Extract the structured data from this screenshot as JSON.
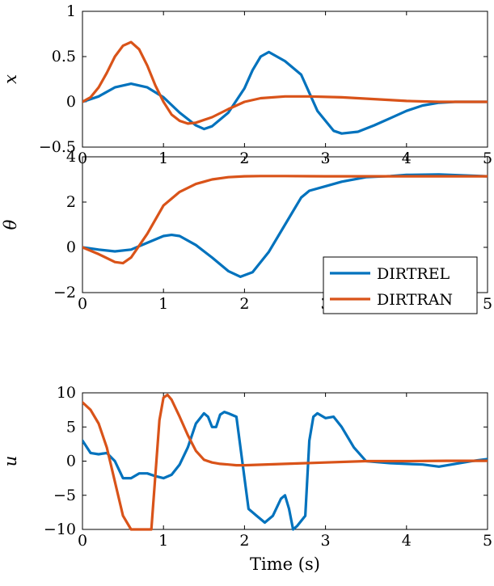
{
  "colors": {
    "DIRTREL": "#0072BD",
    "DIRTRAN": "#D95319"
  },
  "chart_data": [
    {
      "type": "line",
      "ylabel": "x",
      "xlim": [
        0,
        5
      ],
      "ylim": [
        -0.5,
        1
      ],
      "xticks": [
        "0",
        "1",
        "2",
        "3",
        "4",
        "5"
      ],
      "yticks": [
        "−0.5",
        "0",
        "0.5",
        "1"
      ],
      "ytick_values": [
        -0.5,
        0,
        0.5,
        1
      ],
      "series": [
        {
          "name": "DIRTREL",
          "x": [
            0,
            0.2,
            0.4,
            0.6,
            0.8,
            1.0,
            1.2,
            1.4,
            1.5,
            1.6,
            1.8,
            2.0,
            2.1,
            2.2,
            2.3,
            2.5,
            2.7,
            2.9,
            3.1,
            3.2,
            3.4,
            3.6,
            3.8,
            4.0,
            4.2,
            4.4,
            4.6,
            4.8,
            5.0
          ],
          "y": [
            0,
            0.06,
            0.16,
            0.2,
            0.16,
            0.05,
            -0.12,
            -0.26,
            -0.3,
            -0.27,
            -0.12,
            0.15,
            0.35,
            0.5,
            0.55,
            0.45,
            0.3,
            -0.1,
            -0.32,
            -0.35,
            -0.33,
            -0.26,
            -0.18,
            -0.1,
            -0.04,
            -0.01,
            0,
            0,
            0
          ]
        },
        {
          "name": "DIRTRAN",
          "x": [
            0,
            0.1,
            0.2,
            0.3,
            0.4,
            0.5,
            0.6,
            0.7,
            0.8,
            0.9,
            1.0,
            1.1,
            1.2,
            1.3,
            1.4,
            1.6,
            1.8,
            2.0,
            2.2,
            2.5,
            2.8,
            3.2,
            3.6,
            4.0,
            4.4,
            4.8,
            5.0
          ],
          "y": [
            0,
            0.05,
            0.16,
            0.32,
            0.5,
            0.62,
            0.66,
            0.58,
            0.4,
            0.18,
            0.0,
            -0.14,
            -0.21,
            -0.24,
            -0.23,
            -0.17,
            -0.08,
            0.0,
            0.04,
            0.06,
            0.06,
            0.05,
            0.03,
            0.01,
            0.0,
            0,
            0
          ]
        }
      ]
    },
    {
      "type": "line",
      "ylabel": "θ",
      "xlim": [
        0,
        5
      ],
      "ylim": [
        -2,
        4
      ],
      "xticks": [
        "0",
        "1",
        "2",
        "3",
        "4",
        "5"
      ],
      "yticks": [
        "−2",
        "0",
        "2",
        "4"
      ],
      "ytick_values": [
        -2,
        0,
        2,
        4
      ],
      "legend": {
        "position": "right",
        "entries": [
          "DIRTREL",
          "DIRTRAN"
        ]
      },
      "series": [
        {
          "name": "DIRTREL",
          "x": [
            0,
            0.2,
            0.4,
            0.6,
            0.8,
            1.0,
            1.1,
            1.2,
            1.4,
            1.6,
            1.8,
            1.95,
            2.1,
            2.3,
            2.5,
            2.7,
            2.8,
            3.0,
            3.2,
            3.5,
            3.8,
            4.0,
            4.4,
            4.7,
            5.0
          ],
          "y": [
            0,
            -0.1,
            -0.18,
            -0.1,
            0.2,
            0.5,
            0.55,
            0.5,
            0.1,
            -0.45,
            -1.05,
            -1.3,
            -1.1,
            -0.2,
            1.0,
            2.2,
            2.5,
            2.7,
            2.9,
            3.1,
            3.15,
            3.2,
            3.22,
            3.18,
            3.14
          ]
        },
        {
          "name": "DIRTRAN",
          "x": [
            0,
            0.2,
            0.4,
            0.5,
            0.6,
            0.8,
            1.0,
            1.2,
            1.4,
            1.6,
            1.8,
            2.0,
            2.2,
            2.5,
            3.0,
            3.5,
            4.0,
            4.5,
            5.0
          ],
          "y": [
            0,
            -0.3,
            -0.65,
            -0.7,
            -0.45,
            0.6,
            1.85,
            2.45,
            2.8,
            3.0,
            3.1,
            3.14,
            3.15,
            3.15,
            3.14,
            3.14,
            3.14,
            3.14,
            3.14
          ]
        }
      ]
    },
    {
      "type": "line",
      "ylabel": "u",
      "xlabel": "Time (s)",
      "xlim": [
        0,
        5
      ],
      "ylim": [
        -10,
        10
      ],
      "xticks": [
        "0",
        "1",
        "2",
        "3",
        "4",
        "5"
      ],
      "yticks": [
        "−10",
        "−5",
        "0",
        "5",
        "10"
      ],
      "ytick_values": [
        -10,
        -5,
        0,
        5,
        10
      ],
      "series": [
        {
          "name": "DIRTREL",
          "x": [
            0,
            0.1,
            0.2,
            0.3,
            0.4,
            0.5,
            0.6,
            0.7,
            0.8,
            0.9,
            1.0,
            1.1,
            1.2,
            1.3,
            1.4,
            1.5,
            1.55,
            1.6,
            1.65,
            1.7,
            1.75,
            1.8,
            1.9,
            1.95,
            2.05,
            2.15,
            2.25,
            2.35,
            2.45,
            2.5,
            2.55,
            2.6,
            2.65,
            2.75,
            2.8,
            2.85,
            2.9,
            3.0,
            3.1,
            3.2,
            3.35,
            3.5,
            3.8,
            4.0,
            4.2,
            4.4,
            4.6,
            4.8,
            5.0
          ],
          "y": [
            3,
            1.2,
            1.0,
            1.2,
            0,
            -2.5,
            -2.5,
            -1.8,
            -1.8,
            -2.2,
            -2.5,
            -2.0,
            -0.5,
            2.0,
            5.5,
            7.0,
            6.5,
            5.0,
            5.0,
            6.8,
            7.2,
            7.0,
            6.5,
            2.0,
            -7.0,
            -8.0,
            -9.0,
            -8.0,
            -5.5,
            -5.0,
            -7.0,
            -10.0,
            -9.5,
            -8.0,
            3.0,
            6.5,
            7.0,
            6.3,
            6.5,
            5.0,
            2.0,
            0.0,
            -0.3,
            -0.4,
            -0.5,
            -0.8,
            -0.4,
            0.0,
            0.3
          ]
        },
        {
          "name": "DIRTRAN",
          "x": [
            0,
            0.1,
            0.2,
            0.3,
            0.4,
            0.5,
            0.6,
            0.7,
            0.8,
            0.85,
            0.9,
            0.95,
            1.0,
            1.05,
            1.1,
            1.2,
            1.3,
            1.4,
            1.5,
            1.6,
            1.7,
            1.8,
            1.9,
            2.0,
            2.5,
            3.0,
            3.5,
            4.0,
            4.5,
            5.0
          ],
          "y": [
            8.6,
            7.5,
            5.5,
            2.0,
            -3.0,
            -8.0,
            -10.0,
            -10.0,
            -10.0,
            -10.0,
            -2.0,
            6.0,
            9.3,
            9.7,
            9.0,
            6.5,
            3.8,
            1.5,
            0.2,
            -0.2,
            -0.4,
            -0.5,
            -0.6,
            -0.6,
            -0.4,
            -0.2,
            0.0,
            0.0,
            0.05,
            0.05
          ]
        }
      ]
    }
  ]
}
